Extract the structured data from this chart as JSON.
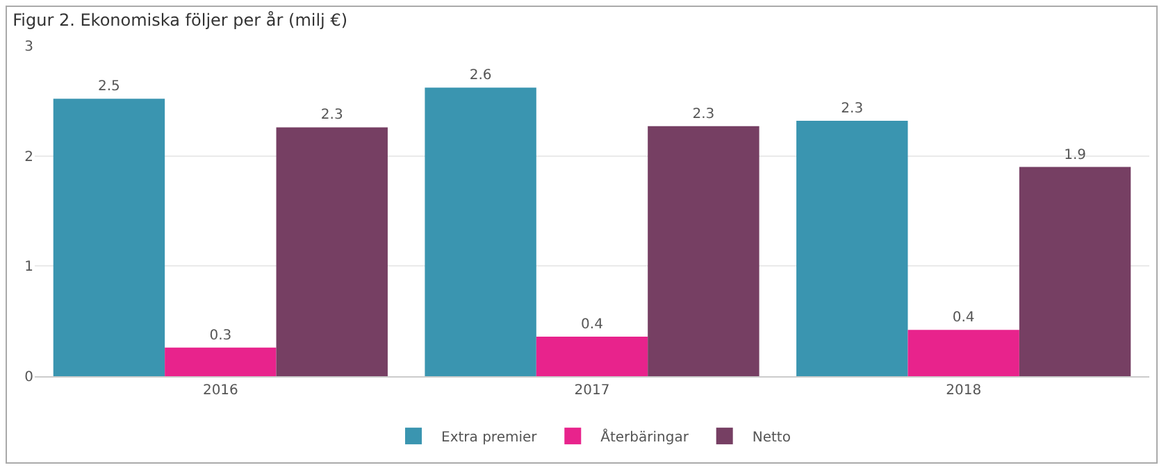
{
  "chart_data": {
    "type": "bar",
    "title": "Figur 2. Ekonomiska följer per år (milj €)",
    "categories": [
      "2016",
      "2017",
      "2018"
    ],
    "series": [
      {
        "name": "Extra premier",
        "color": "#3a95b0",
        "values": [
          2.52,
          2.62,
          2.32
        ],
        "value_labels": [
          "2.5",
          "2.6",
          "2.3"
        ]
      },
      {
        "name": "Återbäringar",
        "color": "#e8238c",
        "values": [
          0.26,
          0.36,
          0.42
        ],
        "value_labels": [
          "0.3",
          "0.4",
          "0.4"
        ]
      },
      {
        "name": "Netto",
        "color": "#763f63",
        "values": [
          2.26,
          2.27,
          1.9
        ],
        "value_labels": [
          "2.3",
          "2.3",
          "1.9"
        ]
      }
    ],
    "ylim": [
      0,
      3
    ],
    "yticks": [
      0,
      1,
      2,
      3
    ],
    "grid": "y",
    "legend": "bottom"
  }
}
